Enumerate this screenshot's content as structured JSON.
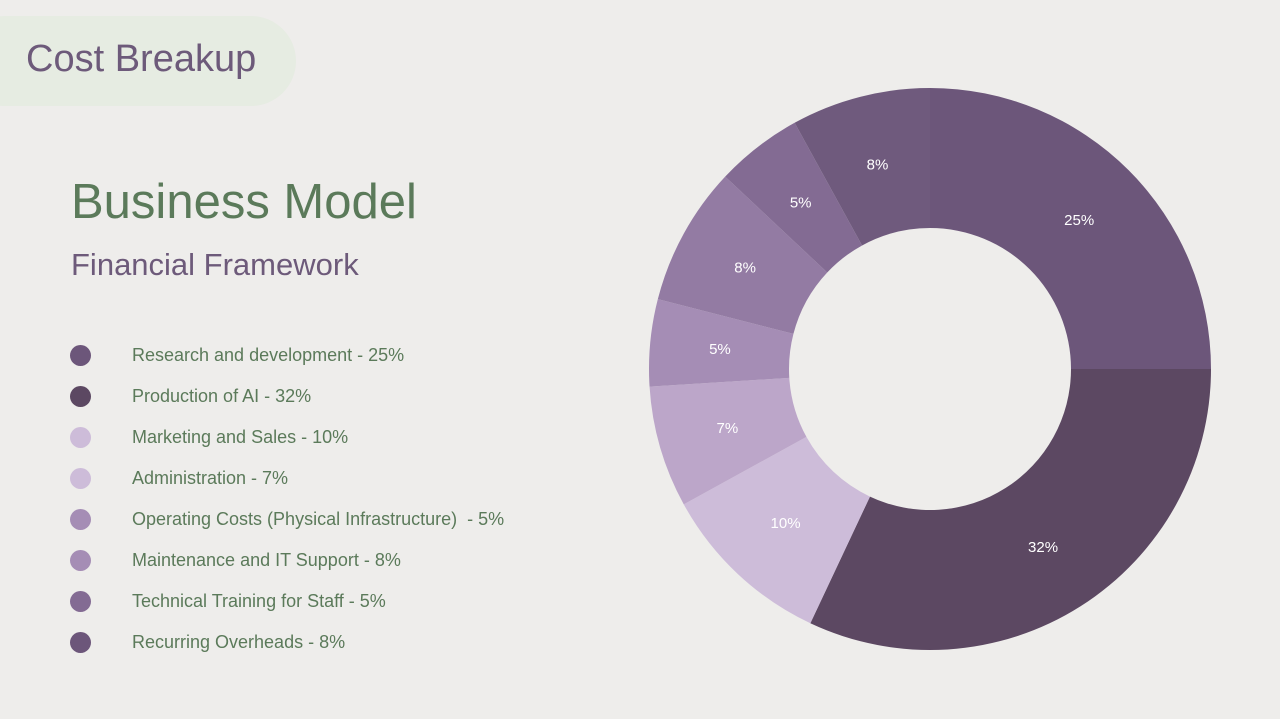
{
  "slide": {
    "tag": "Cost Breakup",
    "title": "Business Model",
    "subtitle": "Financial Framework"
  },
  "chart_data": {
    "type": "pie",
    "variant": "donut",
    "legend_position": "left",
    "categories": [
      "Research and development",
      "Production of AI",
      "Marketing and Sales",
      "Administration",
      "Operating Costs (Physical Infrastructure)",
      "Maintenance and IT Support",
      "Technical Training for Staff",
      "Recurring Overheads"
    ],
    "values": [
      25,
      32,
      10,
      7,
      5,
      8,
      5,
      8
    ],
    "slice_labels": [
      "25%",
      "32%",
      "10%",
      "7%",
      "5%",
      "8%",
      "5%",
      "8%"
    ],
    "colors": [
      "#6c567a",
      "#5c4862",
      "#cdbcd9",
      "#bca6c9",
      "#a58db5",
      "#937ba3",
      "#836b93",
      "#6f5a7d"
    ]
  },
  "legend": {
    "items": [
      {
        "label": "Research and development - 25%",
        "color": "#6c567a"
      },
      {
        "label": "Production of AI - 32%",
        "color": "#5c4862"
      },
      {
        "label": "Marketing and Sales - 10%",
        "color": "#cdbcd9"
      },
      {
        "label": "Administration - 7%",
        "color": "#cdbcd9"
      },
      {
        "label": "Operating Costs (Physical Infrastructure)  - 5%",
        "color": "#a58db5"
      },
      {
        "label": "Maintenance and IT Support - 8%",
        "color": "#a58db5"
      },
      {
        "label": "Technical Training for Staff - 5%",
        "color": "#836b93"
      },
      {
        "label": "Recurring Overheads - 8%",
        "color": "#6c567a"
      }
    ]
  }
}
